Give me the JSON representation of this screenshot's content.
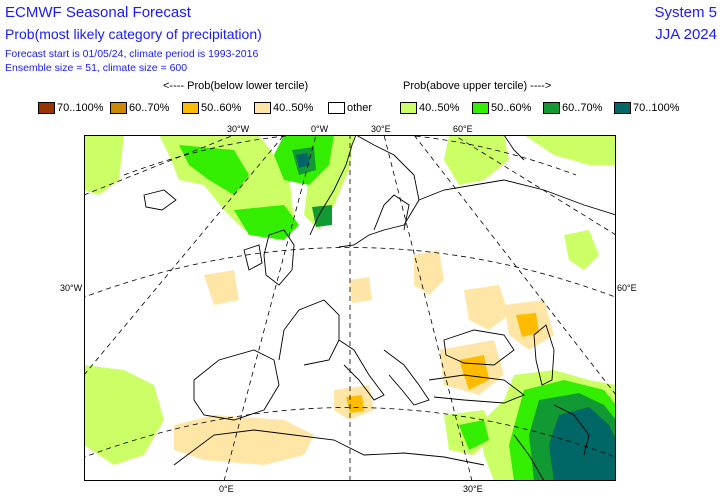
{
  "header": {
    "title": "ECMWF Seasonal Forecast",
    "subtitle": "Prob(most likely category of precipitation)",
    "info_line1": "Forecast start is 01/05/24, climate period is 1993-2016",
    "info_line2": "Ensemble size = 51, climate size = 600",
    "system": "System 5",
    "season": "JJA 2024"
  },
  "legend": {
    "below_title": "<---- Prob(below lower tercile)",
    "above_title": "Prob(above upper tercile) ---->",
    "items": [
      {
        "label": "70..100%",
        "color": "#993300"
      },
      {
        "label": "60..70%",
        "color": "#cc8800"
      },
      {
        "label": "50..60%",
        "color": "#ffbb00"
      },
      {
        "label": "40..50%",
        "color": "#ffe6a6"
      },
      {
        "label": "other",
        "color": "#ffffff"
      },
      {
        "label": "40..50%",
        "color": "#ccff66"
      },
      {
        "label": "50..60%",
        "color": "#33ee00"
      },
      {
        "label": "60..70%",
        "color": "#119933"
      },
      {
        "label": "70..100%",
        "color": "#006666"
      }
    ]
  },
  "map": {
    "graticule_labels": {
      "top": [
        "30°W",
        "0°W",
        "30°E",
        "60°E"
      ],
      "left": [
        "30°W"
      ],
      "right": [
        "60°E"
      ],
      "bottom": [
        "0°E",
        "30°E"
      ]
    }
  }
}
